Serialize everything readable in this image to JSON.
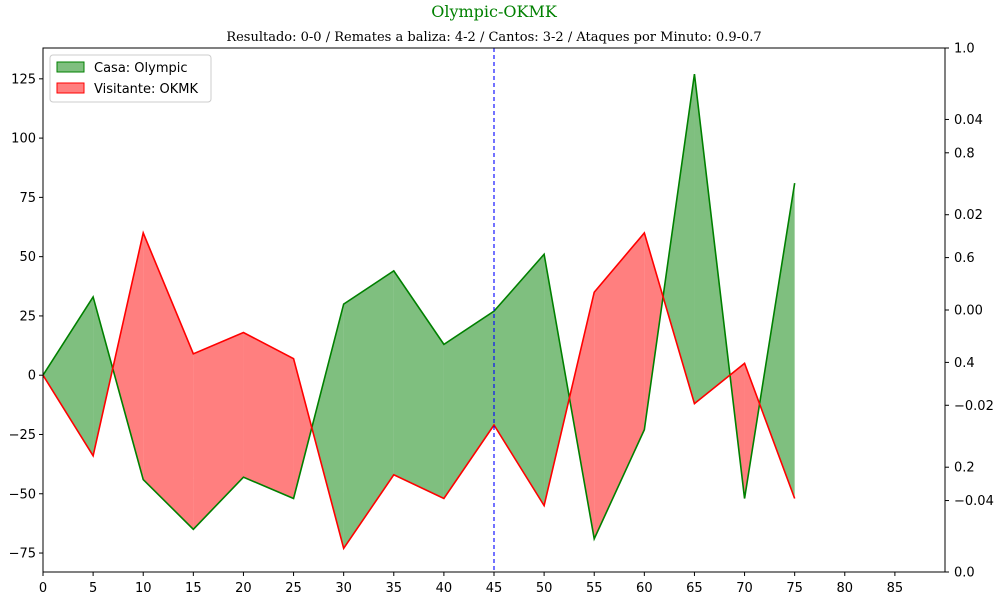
{
  "chart_data": {
    "type": "area",
    "title": "Olympic-OKMK",
    "subtitle": "Resultado: 0-0 / Remates a baliza: 4-2 / Cantos: 3-2 / Ataques por Minuto: 0.9-0.7",
    "x": [
      0,
      5,
      10,
      15,
      20,
      25,
      30,
      35,
      40,
      45,
      50,
      55,
      60,
      65,
      70,
      75
    ],
    "xlim": [
      0,
      90
    ],
    "x_ticks": [
      "0",
      "5",
      "10",
      "15",
      "20",
      "25",
      "30",
      "35",
      "40",
      "45",
      "50",
      "55",
      "60",
      "65",
      "70",
      "75",
      "80",
      "85"
    ],
    "ylim": [
      -83,
      138
    ],
    "y_ticks": [
      "−75",
      "−50",
      "−25",
      "0",
      "25",
      "50",
      "75",
      "100",
      "125"
    ],
    "series": [
      {
        "name": "Casa: Olympic",
        "color": "#008000",
        "fill": "#008000",
        "values": [
          0,
          33,
          -44,
          -65,
          -43,
          -52,
          30,
          44,
          13,
          27,
          51,
          -69,
          -23,
          127,
          -52,
          81
        ]
      },
      {
        "name": "Visitante: OKMK",
        "color": "#ff0000",
        "fill": "#ff0000",
        "values": [
          0,
          -34,
          60,
          9,
          18,
          7,
          -73,
          -42,
          -52,
          -21,
          -55,
          35,
          60,
          -12,
          5,
          -52
        ]
      }
    ],
    "vline": {
      "x": 45,
      "color": "#0000ff",
      "style": "dashed"
    },
    "right_axis_outer_ticks": [
      "0.0",
      "0.2",
      "0.4",
      "0.6",
      "0.8",
      "1.0"
    ],
    "right_axis_inner_ticks": [
      "−0.04",
      "−0.02",
      "0.00",
      "0.02",
      "0.04"
    ],
    "legend_position": "top-left",
    "grid": false
  }
}
